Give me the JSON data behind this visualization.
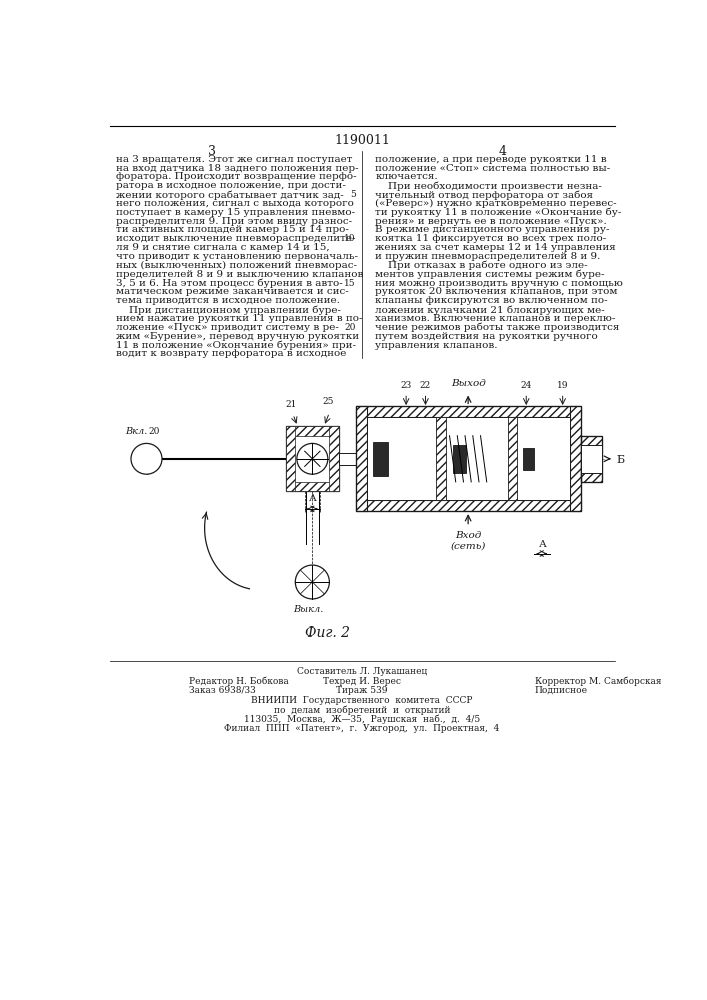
{
  "page_number": "1190011",
  "col_left": "3",
  "col_right": "4",
  "text_left_col": [
    "на 3 вращателя. Этот же сигнал поступает",
    "на вход датчика 18 заднего положения пер-",
    "форатора. Происходит возвращение перфо-",
    "ратора в исходное положение, при дости-",
    "жении которого срабатывает датчик зад-",
    "него положения, сигнал с выхода которого",
    "поступает в камеру 15 управления пневмо-",
    "распределителя 9. При этом ввиду разнос-",
    "ти активных площадей камер 15 и 14 про-",
    "исходит выключение пневмораспределите-",
    "ля 9 и снятие сигнала с камер 14 и 15,",
    "что приводит к установлению первоначаль-",
    "ных (выключенных) положений пневморас-",
    "пределителей 8 и 9 и выключению клапанов",
    "3, 5 и 6. На этом процесс бурения в авто-",
    "матическом режиме заканчивается и сис-",
    "тема приводится в исходное положение.",
    "    При дистанционном управлении буре-",
    "нием нажатие рукоятки 11 управления в по-",
    "ложение «Пуск» приводит систему в ре-",
    "жим «Бурение», перевод вручную рукоятки",
    "11 в положение «Окончание бурения» при-",
    "водит к возврату перфоратора в исходное"
  ],
  "text_right_col": [
    "положение, а при переводе рукоятки 11 в",
    "положение «Стоп» система полностью вы-",
    "ключается.",
    "    При необходимости произвести незна-",
    "чительный отвод перфоратора от забоя",
    "(«Реверс») нужно кратковременно перевес-",
    "ти рукоятку 11 в положение «Окончание бу-",
    "рения» и вернуть ее в положение «Пуск».",
    "В режиме дистанционного управления ру-",
    "коятка 11 фиксируется во всех трех поло-",
    "жениях за счет камеры 12 и 14 управления",
    "и пружин пневмораспределителей 8 и 9.",
    "    При отказах в работе одного из эле-",
    "ментов управления системы режим буре-",
    "ния можно производить вручную с помощью",
    "рукояток 20 включения клапанов, при этом",
    "клапаны фиксируются во включенном по-",
    "ложении кулачками 21 блокирующих ме-",
    "ханизмов. Включение клапанов и переклю-",
    "чение режимов работы также производится",
    "путем воздействия на рукоятки ручного",
    "управления клапанов."
  ],
  "line_numbers": {
    "4": "5",
    "9": "10",
    "14": "15",
    "19": "20"
  },
  "fig_label": "Фиг. 2",
  "diag_labels": {
    "vkl": "Вкл.",
    "vykl": "Выкл.",
    "vyhod": "Выход",
    "vhod": "Вход\n(сеть)",
    "B": "Б",
    "n20": "20",
    "n21": "21",
    "n22": "22",
    "n23": "23",
    "n24": "24",
    "n25": "25",
    "n19": "19"
  },
  "footer": {
    "line0": "Составитель Л. Лукашанец",
    "left1": "Редактор Н. Бобкова",
    "mid1": "Техред И. Верес",
    "right1": "Корректор М. Самборская",
    "left2": "Заказ 6938/33",
    "mid2": "Тираж 539",
    "right2": "Подписное",
    "line3": "ВНИИПИ  Государственного  комитета  СССР",
    "line4": "по  делам  изобретений  и  открытий",
    "line5": "113035,  Москва,  Ж—35,  Раушская  наб.,  д.  4/5",
    "line6": "Филиал  ППП  «Патент»,  г.  Ужгород,  ул.  Проектная,  4"
  },
  "bg_color": "#ffffff",
  "text_color": "#1a1a1a",
  "line_color": "#1a1a1a",
  "font_size_body": 7.5,
  "font_size_small": 6.5,
  "font_size_header": 9.0,
  "font_size_col": 9.0
}
